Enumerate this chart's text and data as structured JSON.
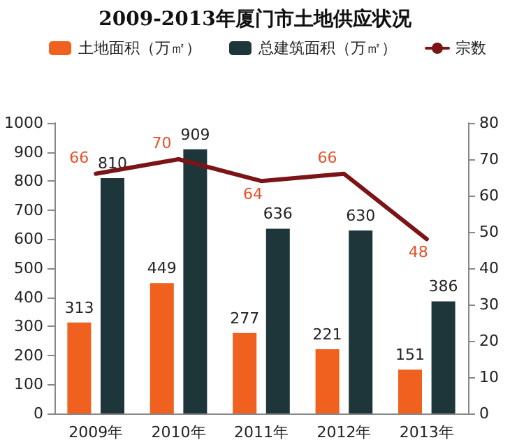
{
  "chart_data": {
    "type": "bar",
    "title": "2009-2013年厦门市土地供应状况",
    "categories": [
      "2009年",
      "2010年",
      "2011年",
      "2012年",
      "2013年"
    ],
    "series": [
      {
        "name": "土地面积（万㎡）",
        "color": "#f0601e",
        "values": [
          313,
          449,
          277,
          221,
          151
        ]
      },
      {
        "name": "总建筑面积（万㎡）",
        "color": "#1e3639",
        "values": [
          810,
          909,
          636,
          630,
          386
        ]
      },
      {
        "name": "宗数",
        "type": "line",
        "axis": "y2",
        "color": "#7b1416",
        "values": [
          66,
          70,
          64,
          66,
          48
        ]
      }
    ],
    "ylim": [
      0,
      1000
    ],
    "yticks": [
      0,
      100,
      200,
      300,
      400,
      500,
      600,
      700,
      800,
      900,
      1000
    ],
    "y2lim": [
      0,
      80
    ],
    "y2ticks": [
      0,
      10,
      20,
      30,
      40,
      50,
      60,
      70,
      80
    ],
    "data_labels": true,
    "legend": "top",
    "grid": false,
    "marker": "none",
    "line_style": "solid"
  }
}
